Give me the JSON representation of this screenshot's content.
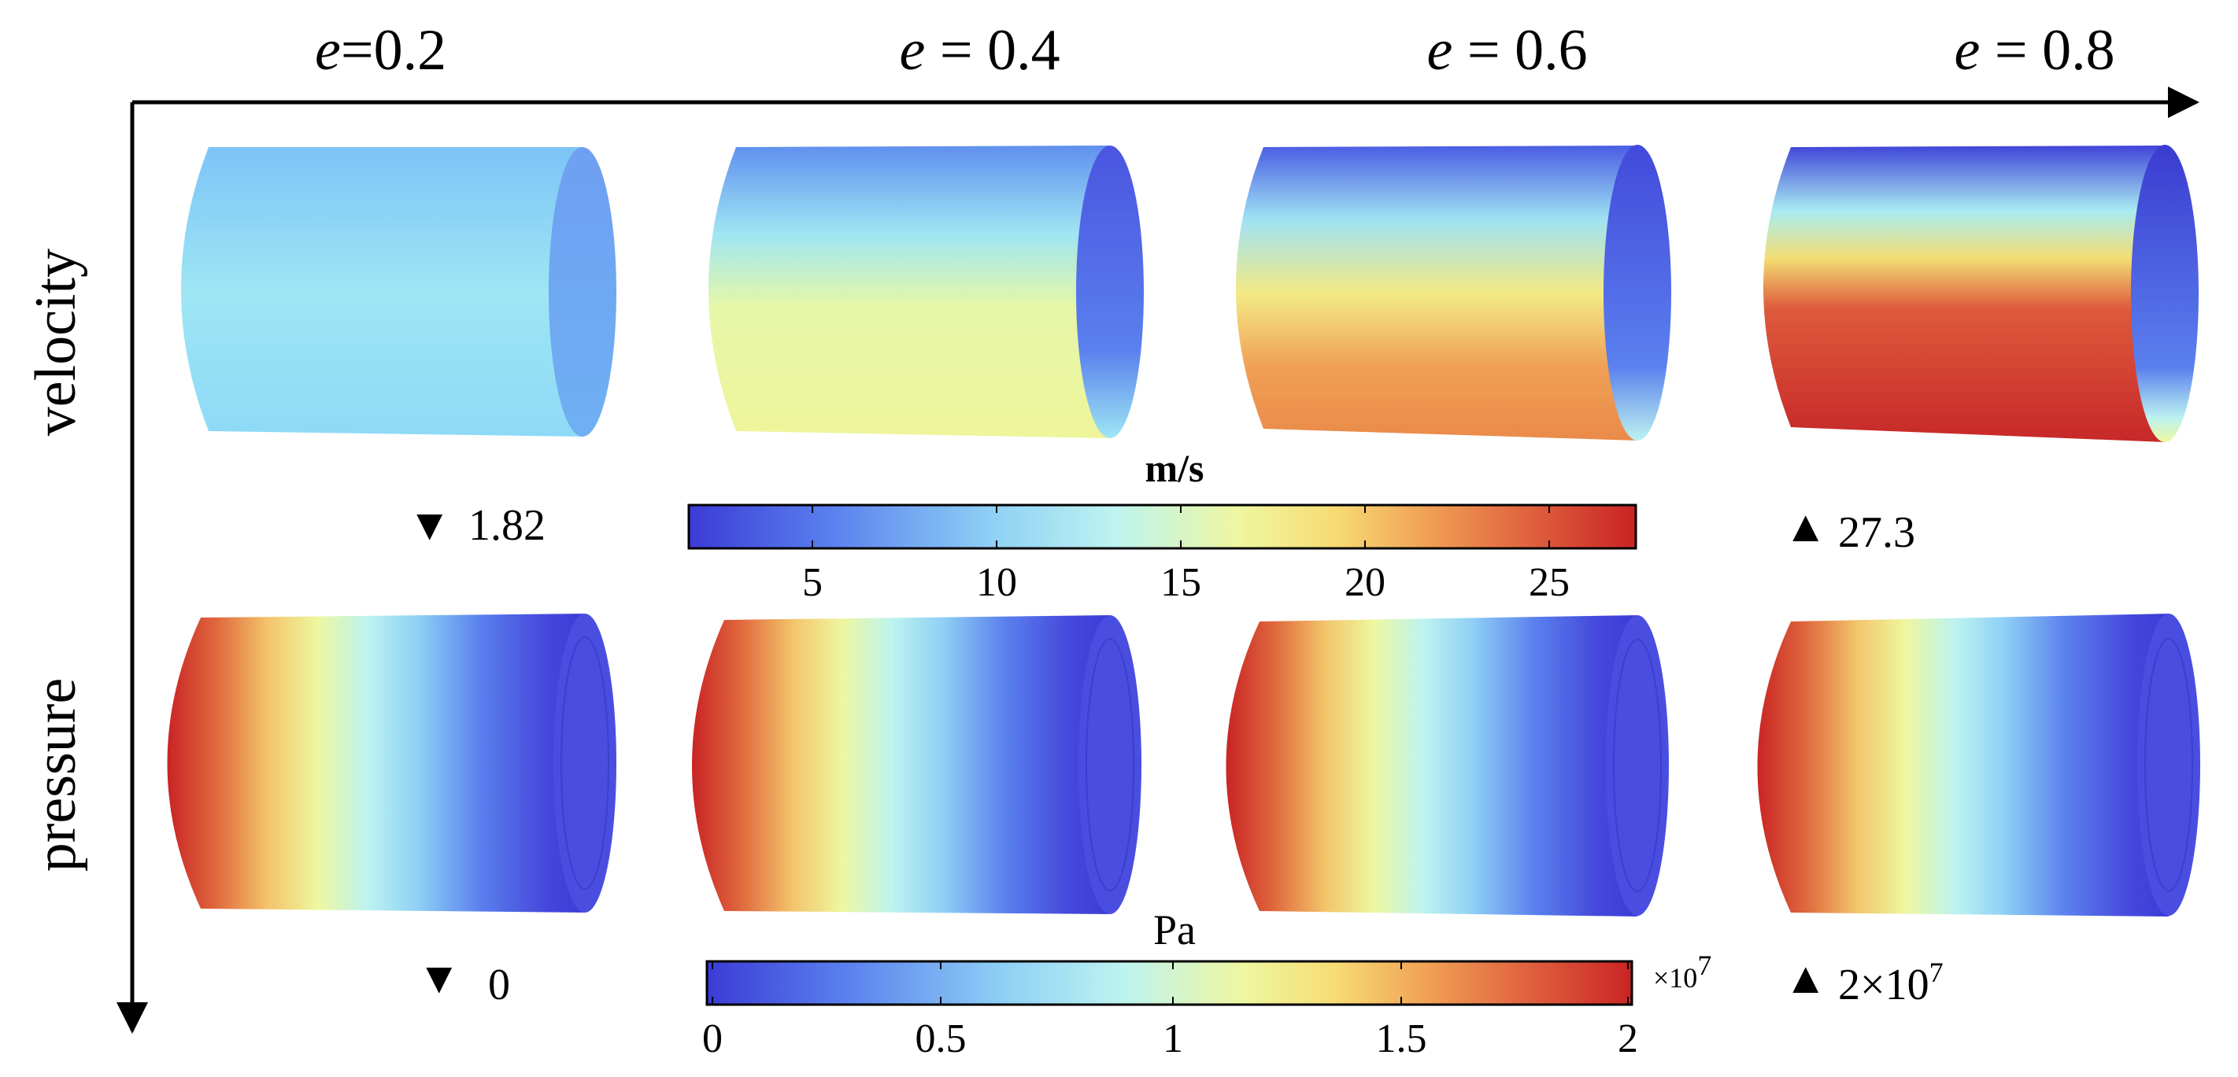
{
  "columns": [
    {
      "var": "e",
      "eq": "=",
      "val": "0.2"
    },
    {
      "var": "e",
      "eq": " = ",
      "val": "0.4"
    },
    {
      "var": "e",
      "eq": " = ",
      "val": "0.6"
    },
    {
      "var": "e",
      "eq": " = ",
      "val": "0.8"
    }
  ],
  "rows": [
    "velocity",
    "pressure"
  ],
  "velocity_colorbar": {
    "unit": "m/s",
    "ticks": [
      "5",
      "10",
      "15",
      "20",
      "25"
    ],
    "min_label": "1.82",
    "max_label": "27.3",
    "min_marker": "▼",
    "max_marker": "▲"
  },
  "pressure_colorbar": {
    "unit": "Pa",
    "ticks": [
      "0",
      "0.5",
      "1",
      "1.5",
      "2"
    ],
    "multiplier_base": "×10",
    "multiplier_exp": "7",
    "min_label": "0",
    "max_label_base": "2×10",
    "max_label_exp": "7",
    "min_marker": "▼",
    "max_marker": "▲"
  },
  "colormap": [
    "#3b3bd6",
    "#5a80ee",
    "#8fd0f5",
    "#bdf3f0",
    "#eef7a0",
    "#f7dc74",
    "#f0a055",
    "#de5a3c",
    "#c92424"
  ]
}
